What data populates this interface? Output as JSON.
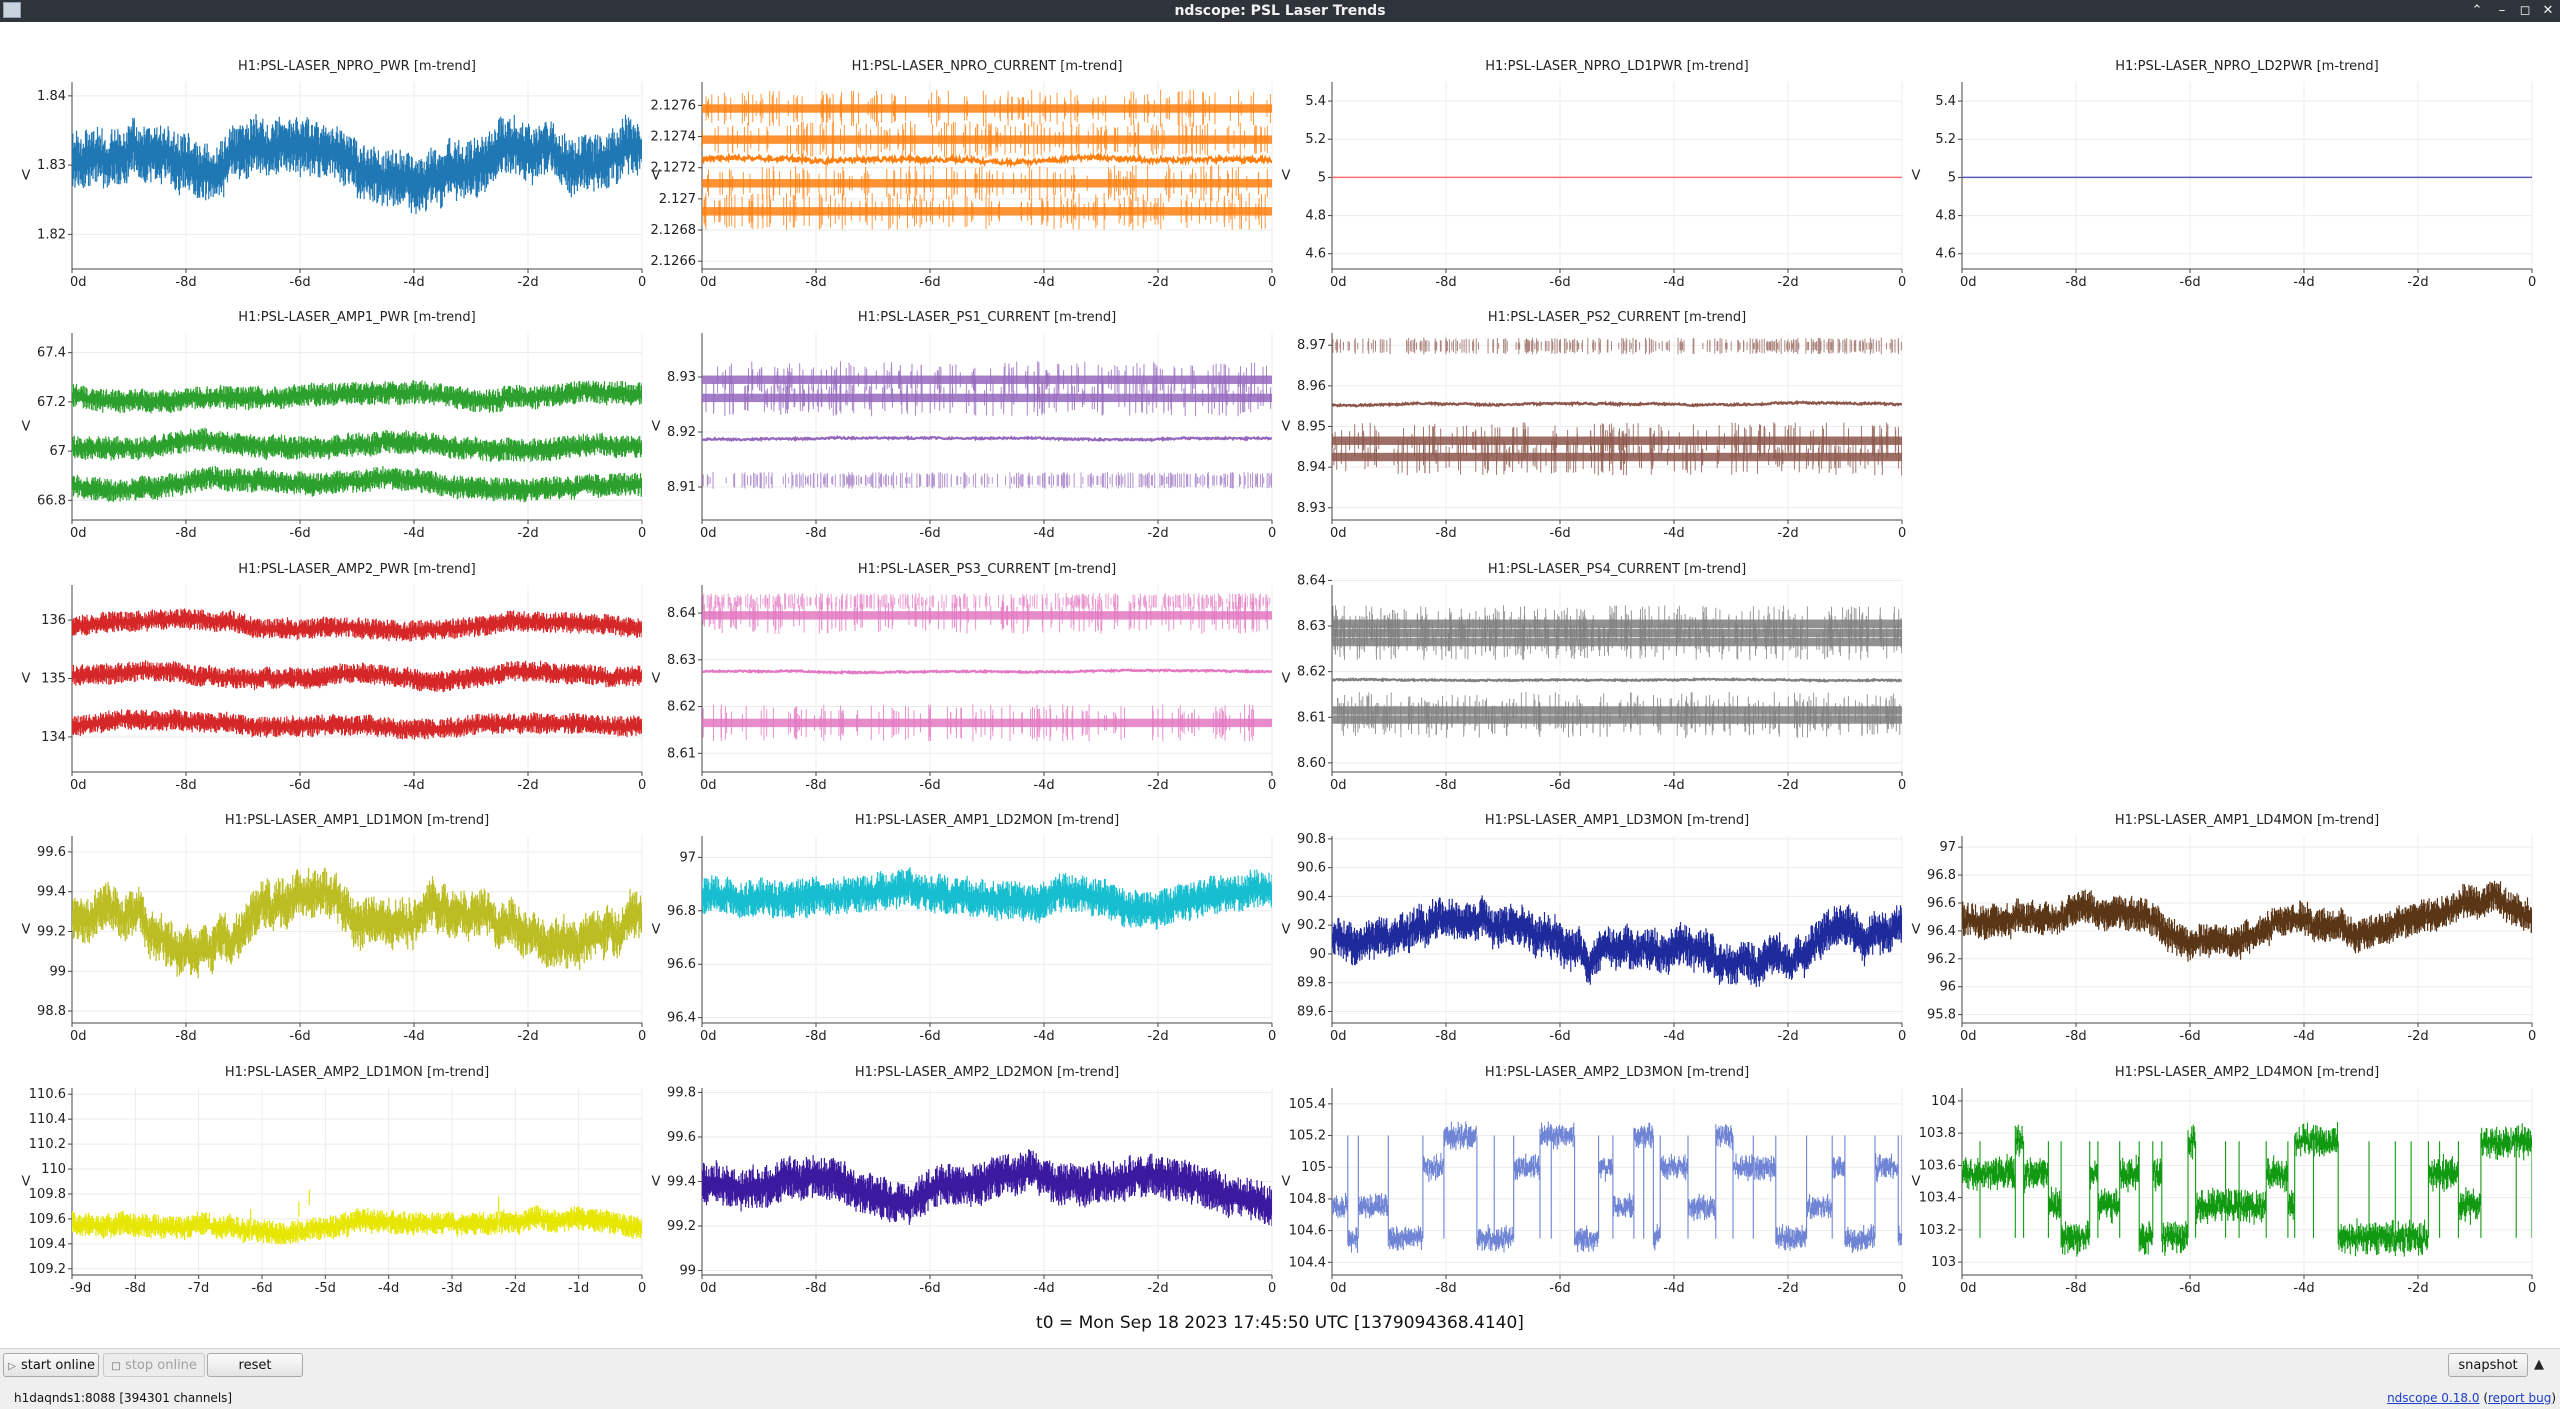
{
  "window": {
    "title": "ndscope: PSL Laser Trends"
  },
  "t0_label": "t0 = Mon Sep 18 2023 17:45:50 UTC [1379094368.4140]",
  "buttons": {
    "start_online": "start online",
    "stop_online": "stop online",
    "reset": "reset",
    "snapshot": "snapshot"
  },
  "status": {
    "server": "h1daqnds1:8088",
    "channels": "[394301 channels]",
    "version_link": "ndscope 0.18.0",
    "report_bug": "report bug",
    "open_paren": "(",
    "close_paren": ")"
  },
  "y_axis_unit": "V",
  "chart_data": [
    {
      "id": "npro_pwr",
      "type": "line",
      "title": "H1:PSL-LASER_NPRO_PWR [m-trend]",
      "color": "#1f77b4",
      "style": "noise",
      "xticks": [
        "0d",
        "-8d",
        "-6d",
        "-4d",
        "-2d",
        "0"
      ],
      "yticks": [
        "1.82",
        "1.83",
        "1.84"
      ],
      "ylim": [
        1.815,
        1.842
      ],
      "bands": [
        1.8305
      ],
      "amp": 0.0035,
      "wander": 0.0045
    },
    {
      "id": "npro_current",
      "type": "line",
      "title": "H1:PSL-LASER_NPRO_CURRENT [m-trend]",
      "color": "#ff7f0e",
      "style": "digital",
      "xticks": [
        "0d",
        "-8d",
        "-6d",
        "-4d",
        "-2d",
        "0"
      ],
      "yticks": [
        "2.1266",
        "2.1268",
        "2.127",
        "2.1272",
        "2.1274",
        "2.1276"
      ],
      "ylim": [
        2.12655,
        2.12775
      ],
      "bands": [
        2.12758,
        2.12738,
        2.1271,
        2.12692
      ],
      "mid": 2.12725,
      "amp": 3e-05,
      "wander": 3e-05
    },
    {
      "id": "npro_ld1pwr",
      "type": "line",
      "title": "H1:PSL-LASER_NPRO_LD1PWR [m-trend]",
      "color": "#ff6f6f",
      "style": "flat",
      "xticks": [
        "0d",
        "-8d",
        "-6d",
        "-4d",
        "-2d",
        "0"
      ],
      "yticks": [
        "4.6",
        "4.8",
        "5",
        "5.2",
        "5.4"
      ],
      "ylim": [
        4.52,
        5.5
      ],
      "value": 5
    },
    {
      "id": "npro_ld2pwr",
      "type": "line",
      "title": "H1:PSL-LASER_NPRO_LD2PWR [m-trend]",
      "color": "#5a5ab4",
      "style": "flat",
      "xticks": [
        "0d",
        "-8d",
        "-6d",
        "-4d",
        "-2d",
        "0"
      ],
      "yticks": [
        "4.6",
        "4.8",
        "5",
        "5.2",
        "5.4"
      ],
      "ylim": [
        4.52,
        5.5
      ],
      "value": 5
    },
    {
      "id": "amp1_pwr",
      "type": "line",
      "title": "H1:PSL-LASER_AMP1_PWR [m-trend]",
      "color": "#2ca02c",
      "style": "bands",
      "xticks": [
        "0d",
        "-8d",
        "-6d",
        "-4d",
        "-2d",
        "0"
      ],
      "yticks": [
        "66.8",
        "67",
        "67.2",
        "67.4"
      ],
      "ylim": [
        66.72,
        67.48
      ],
      "bands": [
        67.23,
        67.02,
        66.87
      ],
      "amp": 0.04,
      "wander": 0.03
    },
    {
      "id": "ps1_current",
      "type": "line",
      "title": "H1:PSL-LASER_PS1_CURRENT [m-trend]",
      "color": "#9467bd",
      "style": "digital",
      "xticks": [
        "0d",
        "-8d",
        "-6d",
        "-4d",
        "-2d",
        "0"
      ],
      "yticks": [
        "8.91",
        "8.92",
        "8.93"
      ],
      "ylim": [
        8.904,
        8.938
      ],
      "bands": [
        8.9295,
        8.9262
      ],
      "mid": 8.9188,
      "sparse": [
        8.9112
      ],
      "amp": 0.0003,
      "wander": 0.0004
    },
    {
      "id": "ps2_current",
      "type": "line",
      "title": "H1:PSL-LASER_PS2_CURRENT [m-trend]",
      "color": "#8c564b",
      "style": "digital",
      "xticks": [
        "0d",
        "-8d",
        "-6d",
        "-4d",
        "-2d",
        "0"
      ],
      "yticks": [
        "8.93",
        "8.94",
        "8.95",
        "8.96",
        "8.97"
      ],
      "ylim": [
        8.927,
        8.973
      ],
      "bands": [
        8.9465,
        8.9425
      ],
      "mid": 8.9555,
      "sparse": [
        8.9698
      ],
      "amp": 0.0004,
      "wander": 0.0008
    },
    {
      "id": "amp2_pwr",
      "type": "line",
      "title": "H1:PSL-LASER_AMP2_PWR [m-trend]",
      "color": "#d62728",
      "style": "bands",
      "xticks": [
        "0d",
        "-8d",
        "-6d",
        "-4d",
        "-2d",
        "0"
      ],
      "yticks": [
        "134",
        "135",
        "136"
      ],
      "ylim": [
        133.4,
        136.6
      ],
      "bands": [
        135.9,
        135.05,
        134.2
      ],
      "amp": 0.15,
      "wander": 0.1
    },
    {
      "id": "ps3_current",
      "type": "line",
      "title": "H1:PSL-LASER_PS3_CURRENT [m-trend]",
      "color": "#e377c2",
      "style": "digital",
      "xticks": [
        "0d",
        "-8d",
        "-6d",
        "-4d",
        "-2d",
        "0"
      ],
      "yticks": [
        "8.61",
        "8.62",
        "8.63",
        "8.64"
      ],
      "ylim": [
        8.606,
        8.646
      ],
      "bands": [
        8.6395,
        8.6165
      ],
      "mid": 8.6275,
      "sparse": [
        8.6425
      ],
      "amp": 0.0003,
      "wander": 0.0004
    },
    {
      "id": "ps4_current",
      "type": "line",
      "title": "H1:PSL-LASER_PS4_CURRENT [m-trend]",
      "color": "#7f7f7f",
      "style": "digital",
      "xticks": [
        "0d",
        "-8d",
        "-6d",
        "-4d",
        "-2d",
        "0"
      ],
      "yticks": [
        "8.60",
        "8.61",
        "8.62",
        "8.63",
        "8.64"
      ],
      "ylim": [
        8.598,
        8.639
      ],
      "bands": [
        8.6305,
        8.6285,
        8.6265,
        8.6115,
        8.6095
      ],
      "mid": 8.6182,
      "amp": 0.0003,
      "wander": 0.0003
    },
    {
      "id": "amp1_ld1mon",
      "type": "line",
      "title": "H1:PSL-LASER_AMP1_LD1MON [m-trend]",
      "color": "#bcbd22",
      "style": "noise",
      "xticks": [
        "0d",
        "-8d",
        "-6d",
        "-4d",
        "-2d",
        "0"
      ],
      "yticks": [
        "98.8",
        "99",
        "99.2",
        "99.4",
        "99.6"
      ],
      "ylim": [
        98.74,
        99.68
      ],
      "bands": [
        99.25
      ],
      "amp": 0.1,
      "wander": 0.22
    },
    {
      "id": "amp1_ld2mon",
      "type": "line",
      "title": "H1:PSL-LASER_AMP1_LD2MON [m-trend]",
      "color": "#17becf",
      "style": "noise",
      "xticks": [
        "0d",
        "-8d",
        "-6d",
        "-4d",
        "-2d",
        "0"
      ],
      "yticks": [
        "96.4",
        "96.6",
        "96.8",
        "97"
      ],
      "ylim": [
        96.38,
        97.08
      ],
      "bands": [
        96.85
      ],
      "amp": 0.06,
      "wander": 0.05
    },
    {
      "id": "amp1_ld3mon",
      "type": "line",
      "title": "H1:PSL-LASER_AMP1_LD3MON [m-trend]",
      "color": "#1f2a9c",
      "style": "noise",
      "xticks": [
        "0d",
        "-8d",
        "-6d",
        "-4d",
        "-2d",
        "0"
      ],
      "yticks": [
        "89.6",
        "89.8",
        "90",
        "90.2",
        "90.4",
        "90.6",
        "90.8"
      ],
      "ylim": [
        89.52,
        90.82
      ],
      "bands": [
        90.1
      ],
      "amp": 0.12,
      "wander": 0.25
    },
    {
      "id": "amp1_ld4mon",
      "type": "line",
      "title": "H1:PSL-LASER_AMP1_LD4MON [m-trend]",
      "color": "#5b3616",
      "style": "noise",
      "xticks": [
        "0d",
        "-8d",
        "-6d",
        "-4d",
        "-2d",
        "0"
      ],
      "yticks": [
        "95.8",
        "96",
        "96.2",
        "96.4",
        "96.6",
        "96.8",
        "97"
      ],
      "ylim": [
        95.74,
        97.08
      ],
      "bands": [
        96.45
      ],
      "amp": 0.1,
      "wander": 0.18
    },
    {
      "id": "amp2_ld1mon",
      "type": "line",
      "title": "H1:PSL-LASER_AMP2_LD1MON [m-trend]",
      "color": "#e6e600",
      "style": "spiky",
      "xticks": [
        "-9d",
        "-8d",
        "-7d",
        "-6d",
        "-5d",
        "-4d",
        "-3d",
        "-2d",
        "-1d",
        "0"
      ],
      "yticks": [
        "109.2",
        "109.4",
        "109.6",
        "109.8",
        "110",
        "110.2",
        "110.4",
        "110.6"
      ],
      "ylim": [
        109.15,
        110.65
      ],
      "bands": [
        109.55
      ],
      "amp": 0.08,
      "wander": 0.08
    },
    {
      "id": "amp2_ld2mon",
      "type": "line",
      "title": "H1:PSL-LASER_AMP2_LD2MON [m-trend]",
      "color": "#3b1aa0",
      "style": "noise",
      "xticks": [
        "0d",
        "-8d",
        "-6d",
        "-4d",
        "-2d",
        "0"
      ],
      "yticks": [
        "99",
        "99.2",
        "99.4",
        "99.6",
        "99.8"
      ],
      "ylim": [
        98.98,
        99.82
      ],
      "bands": [
        99.4
      ],
      "amp": 0.08,
      "wander": 0.08
    },
    {
      "id": "amp2_ld3mon",
      "type": "line",
      "title": "H1:PSL-LASER_AMP2_LD3MON [m-trend]",
      "color": "#6f84d4",
      "style": "steps",
      "xticks": [
        "0d",
        "-8d",
        "-6d",
        "-4d",
        "-2d",
        "0"
      ],
      "yticks": [
        "104.4",
        "104.6",
        "104.8",
        "105",
        "105.2",
        "105.4"
      ],
      "ylim": [
        104.32,
        105.5
      ],
      "levels": [
        104.55,
        104.75,
        105.0,
        105.2
      ],
      "amp": 0.06,
      "wander": 0.05
    },
    {
      "id": "amp2_ld4mon",
      "type": "line",
      "title": "H1:PSL-LASER_AMP2_LD4MON [m-trend]",
      "color": "#119a11",
      "style": "steps",
      "xticks": [
        "0d",
        "-8d",
        "-6d",
        "-4d",
        "-2d",
        "0"
      ],
      "yticks": [
        "103",
        "103.2",
        "103.4",
        "103.6",
        "103.8",
        "104"
      ],
      "ylim": [
        102.92,
        104.08
      ],
      "levels": [
        103.15,
        103.35,
        103.55,
        103.75
      ],
      "amp": 0.08,
      "wander": 0.06
    }
  ]
}
